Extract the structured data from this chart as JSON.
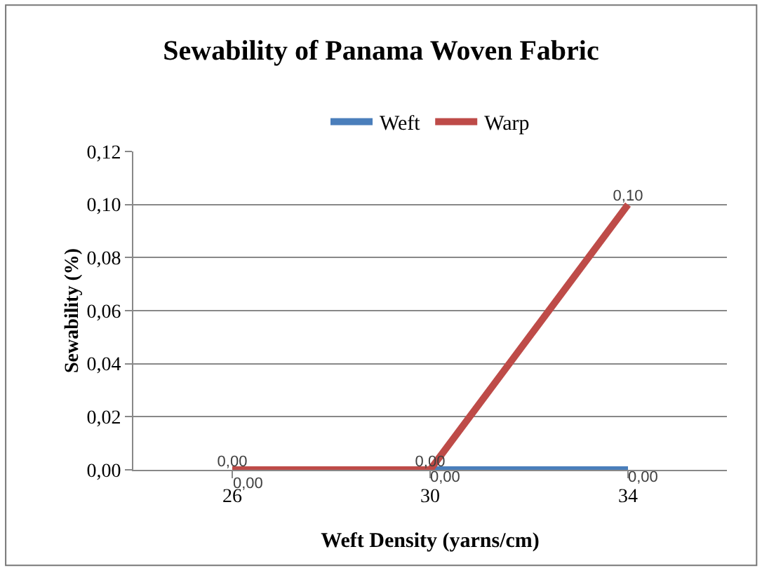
{
  "chart_data": {
    "type": "line",
    "title": "Sewability of Panama Woven Fabric",
    "xlabel": "Weft Density (yarns/cm)",
    "ylabel": "Sewability (%)",
    "categories": [
      "26",
      "30",
      "34"
    ],
    "series": [
      {
        "name": "Weft",
        "color": "#4a7ebb",
        "values": [
          null,
          0,
          0
        ],
        "value_labels": [
          null,
          "0,00",
          "0,00"
        ]
      },
      {
        "name": "Warp",
        "color": "#be4b48",
        "values": [
          0,
          0,
          0.1
        ],
        "value_labels": [
          "0,00",
          "0,00",
          "0,10"
        ]
      }
    ],
    "annotations": [
      {
        "text": "0,00",
        "x": "26",
        "y": 0
      }
    ],
    "ylim": [
      0,
      0.12
    ],
    "yticks": [
      {
        "value": 0,
        "label": "0,00"
      },
      {
        "value": 0.02,
        "label": "0,02"
      },
      {
        "value": 0.04,
        "label": "0,04"
      },
      {
        "value": 0.06,
        "label": "0,06"
      },
      {
        "value": 0.08,
        "label": "0,08"
      },
      {
        "value": 0.1,
        "label": "0,10"
      },
      {
        "value": 0.12,
        "label": "0,12"
      }
    ],
    "grid": "y",
    "legend": "top",
    "marker": "none",
    "line_style": "solid"
  }
}
